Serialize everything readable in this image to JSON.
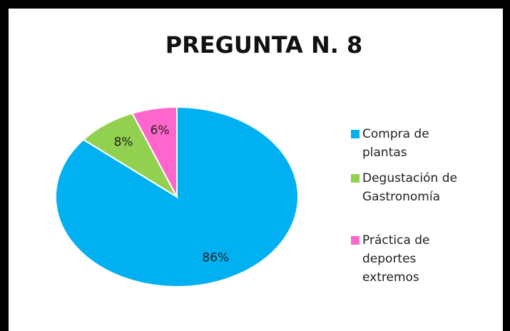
{
  "chart_data": {
    "type": "pie",
    "title": "PREGUNTA N. 8",
    "categories": [
      "Compra de plantas",
      "Degustación de Gastronomía",
      "Práctica de deportes extremos"
    ],
    "values": [
      86,
      8,
      6
    ],
    "value_labels": [
      "86%",
      "8%",
      "6%"
    ],
    "colors": [
      "#00b0f0",
      "#92d050",
      "#ff66cc"
    ]
  }
}
